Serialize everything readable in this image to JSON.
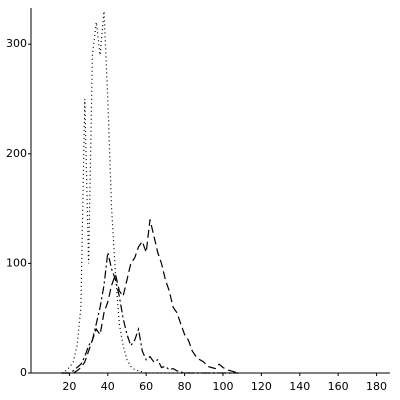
{
  "chart_data": {
    "type": "line",
    "x": [
      16,
      18,
      20,
      22,
      24,
      26,
      28,
      30,
      32,
      34,
      36,
      38,
      40,
      42,
      44,
      46,
      48,
      50,
      52,
      54,
      56,
      58,
      60,
      62,
      64,
      66,
      68,
      70,
      72,
      74,
      76,
      78,
      80,
      82,
      84,
      86,
      88,
      90,
      92,
      94,
      96,
      98,
      100,
      102,
      104,
      106,
      108
    ],
    "series": [
      {
        "color": "#000000",
        "dash": "dotted",
        "values": [
          0,
          2,
          5,
          10,
          25,
          60,
          250,
          100,
          290,
          320,
          290,
          330,
          250,
          150,
          90,
          45,
          25,
          12,
          6,
          3,
          2,
          1,
          0,
          0,
          0,
          0,
          0,
          0,
          0,
          0,
          0,
          0,
          0,
          0,
          0,
          0,
          0,
          0,
          0,
          0,
          0,
          0,
          0,
          0,
          0,
          0,
          0
        ]
      },
      {
        "color": "#000000",
        "dash": "dashdot",
        "values": [
          0,
          0,
          0,
          2,
          5,
          8,
          15,
          25,
          30,
          45,
          60,
          80,
          110,
          95,
          85,
          70,
          50,
          35,
          25,
          30,
          40,
          20,
          12,
          15,
          10,
          12,
          5,
          6,
          3,
          4,
          2,
          1,
          0,
          0,
          0,
          0,
          0,
          0,
          0,
          0,
          0,
          0,
          0,
          0,
          0,
          0,
          0
        ]
      },
      {
        "color": "#000000",
        "dash": "dashed",
        "values": [
          0,
          0,
          0,
          0,
          2,
          5,
          10,
          20,
          30,
          40,
          35,
          55,
          65,
          80,
          90,
          75,
          70,
          85,
          100,
          105,
          115,
          120,
          110,
          140,
          125,
          110,
          100,
          85,
          75,
          60,
          55,
          45,
          35,
          30,
          20,
          15,
          12,
          10,
          6,
          5,
          4,
          8,
          5,
          3,
          2,
          1,
          0
        ]
      }
    ],
    "xlim": [
      0,
      187
    ],
    "xticks": [
      20,
      40,
      60,
      80,
      100,
      120,
      140,
      160,
      180
    ],
    "ylim": [
      0,
      333
    ],
    "yticks": [
      0,
      100,
      200,
      300
    ]
  }
}
